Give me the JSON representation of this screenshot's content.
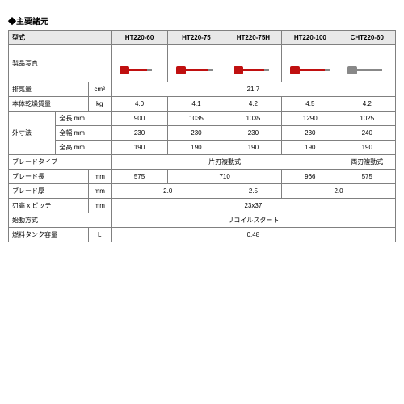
{
  "title": "◆主要諸元",
  "headers": {
    "model": "型式",
    "models": [
      "HT220-60",
      "HT220-75",
      "HT220-75H",
      "HT220-100",
      "CHT220-60"
    ]
  },
  "rows": {
    "photo_label": "製品写真",
    "disp_label": "排気量",
    "disp_unit": "cm³",
    "disp_val": "21.7",
    "dryw_label": "本体乾燥質量",
    "dryw_unit": "kg",
    "dryw_vals": [
      "4.0",
      "4.1",
      "4.2",
      "4.5",
      "4.2"
    ],
    "dim_label": "外寸法",
    "len_label": "全長 mm",
    "len_vals": [
      "900",
      "1035",
      "1035",
      "1290",
      "1025"
    ],
    "wid_label": "全幅 mm",
    "wid_vals": [
      "230",
      "230",
      "230",
      "230",
      "240"
    ],
    "hei_label": "全高 mm",
    "hei_vals": [
      "190",
      "190",
      "190",
      "190",
      "190"
    ],
    "btype_label": "ブレードタイプ",
    "btype_a": "片刃複動式",
    "btype_b": "両刃複動式",
    "blen_label": "ブレード長",
    "blen_unit": "mm",
    "blen_a": "575",
    "blen_b": "710",
    "blen_c": "966",
    "blen_d": "575",
    "bthk_label": "ブレード厚",
    "bthk_unit": "mm",
    "bthk_a": "2.0",
    "bthk_b": "2.5",
    "bthk_c": "2.0",
    "pitch_label": "刃高 x ピッチ",
    "pitch_unit": "mm",
    "pitch_val": "23x37",
    "start_label": "始動方式",
    "start_val": "リコイルスタート",
    "tank_label": "燃料タンク容量",
    "tank_unit": "L",
    "tank_val": "0.48"
  }
}
